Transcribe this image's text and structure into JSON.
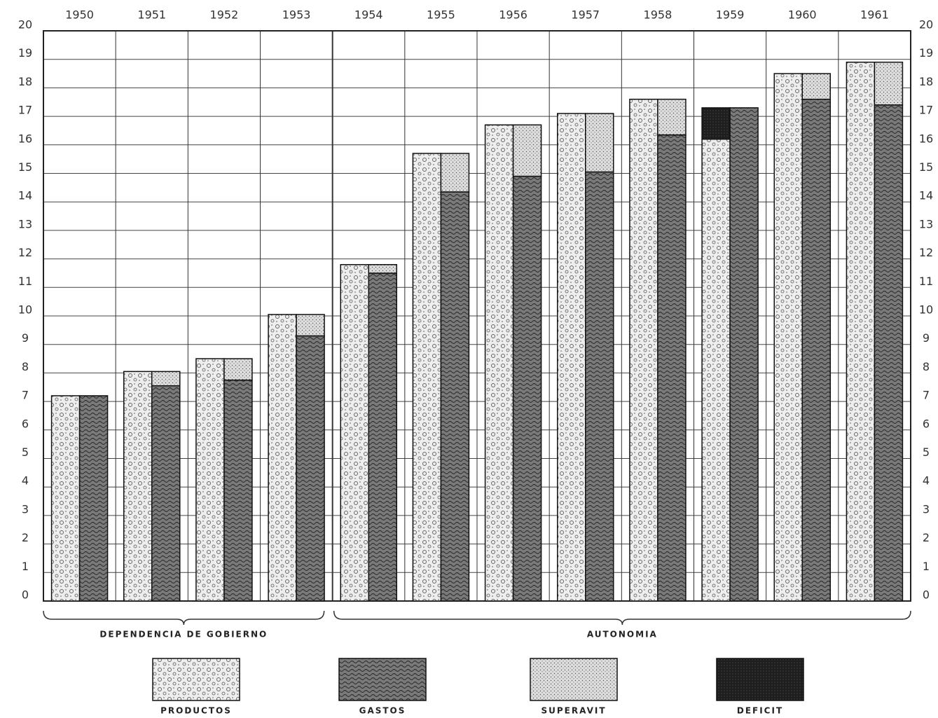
{
  "chart_data": {
    "type": "bar",
    "categories": [
      "1950",
      "1951",
      "1952",
      "1953",
      "1954",
      "1955",
      "1956",
      "1957",
      "1958",
      "1959",
      "1960",
      "1961"
    ],
    "series": [
      {
        "name": "PRODUCTOS",
        "color": "#eeeeee",
        "values": [
          7.2,
          8.05,
          8.5,
          10.05,
          11.8,
          15.7,
          16.7,
          17.1,
          17.6,
          16.2,
          18.5,
          18.9
        ]
      },
      {
        "name": "GASTOS",
        "color": "#7a7a7a",
        "values": [
          7.2,
          7.55,
          7.75,
          9.3,
          11.5,
          14.35,
          14.9,
          15.05,
          16.35,
          17.3,
          17.6,
          17.4
        ]
      },
      {
        "name": "SUPERAVIT",
        "color": "#dcdcdc",
        "values": [
          0,
          0.5,
          0.75,
          0.75,
          0.3,
          1.35,
          1.8,
          2.05,
          1.25,
          0,
          0.9,
          1.5
        ]
      },
      {
        "name": "DEFICIT",
        "color": "#1e1e1e",
        "values": [
          0,
          0,
          0,
          0,
          0,
          0,
          0,
          0,
          0,
          1.1,
          0,
          0
        ]
      }
    ],
    "groups": [
      "DEPENDENCIA DE GOBIERNO",
      "AUTONOMIA"
    ],
    "ylim": [
      0,
      20
    ],
    "yticks": [
      0,
      1,
      2,
      3,
      4,
      5,
      6,
      7,
      8,
      9,
      10,
      11,
      12,
      13,
      14,
      15,
      16,
      17,
      18,
      19,
      20
    ],
    "grid": true
  }
}
